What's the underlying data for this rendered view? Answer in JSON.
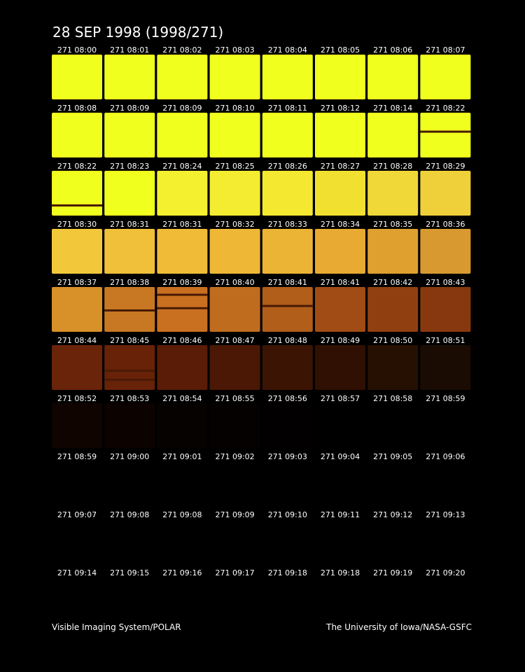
{
  "header": {
    "title": "28 SEP 1998  (1998/271)"
  },
  "grid": {
    "rows": [
      [
        "271 08:00",
        "271 08:01",
        "271 08:02",
        "271 08:03",
        "271 08:04",
        "271 08:05",
        "271 08:06",
        "271 08:07"
      ],
      [
        "271 08:08",
        "271 08:09",
        "271 08:09",
        "271 08:10",
        "271 08:11",
        "271 08:12",
        "271 08:14",
        "271 08:22"
      ],
      [
        "271 08:22",
        "271 08:23",
        "271 08:24",
        "271 08:25",
        "271 08:26",
        "271 08:27",
        "271 08:28",
        "271 08:29"
      ],
      [
        "271 08:30",
        "271 08:31",
        "271 08:31",
        "271 08:32",
        "271 08:33",
        "271 08:34",
        "271 08:35",
        "271 08:36"
      ],
      [
        "271 08:37",
        "271 08:38",
        "271 08:39",
        "271 08:40",
        "271 08:41",
        "271 08:41",
        "271 08:42",
        "271 08:43"
      ],
      [
        "271 08:44",
        "271 08:45",
        "271 08:46",
        "271 08:47",
        "271 08:48",
        "271 08:49",
        "271 08:50",
        "271 08:51"
      ],
      [
        "271 08:52",
        "271 08:53",
        "271 08:54",
        "271 08:55",
        "271 08:56",
        "271 08:57",
        "271 08:58",
        "271 08:59"
      ],
      [
        "271 08:59",
        "271 09:00",
        "271 09:01",
        "271 09:02",
        "271 09:03",
        "271 09:04",
        "271 09:05",
        "271 09:06"
      ],
      [
        "271 09:07",
        "271 09:08",
        "271 09:08",
        "271 09:09",
        "271 09:10",
        "271 09:11",
        "271 09:12",
        "271 09:13"
      ],
      [
        "271 09:14",
        "271 09:15",
        "271 09:16",
        "271 09:17",
        "271 09:18",
        "271 09:18",
        "271 09:19",
        "271 09:20"
      ]
    ]
  },
  "footer": {
    "left": "Visible Imaging System/POLAR",
    "right": "The University of Iowa/NASA-GSFC"
  }
}
